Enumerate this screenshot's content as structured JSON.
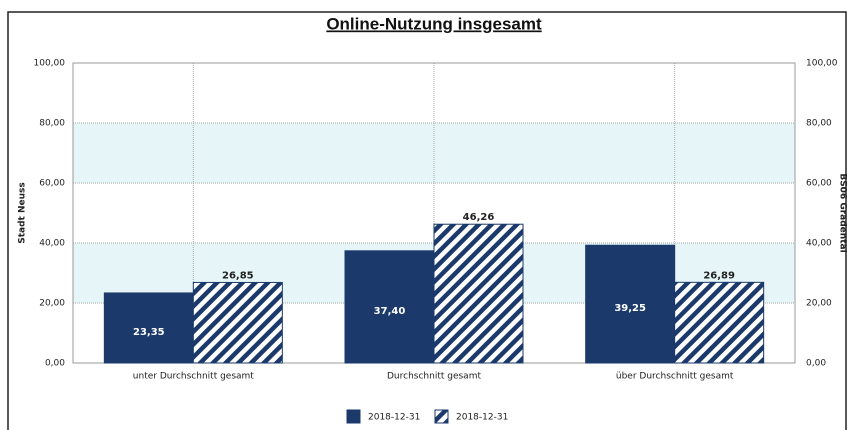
{
  "chart_data": {
    "type": "bar",
    "title": "Online-Nutzung insgesamt",
    "y_label": "Stadt Neuss",
    "y2_label": "BS06 Gradental",
    "categories": [
      "unter Durchschnitt gesamt",
      "Durchschnitt gesamt",
      "über Durchschnitt gesamt"
    ],
    "series": [
      {
        "name": "2018-12-31",
        "color": "#1b3a6b",
        "pattern": "solid",
        "values": [
          23.35,
          37.4,
          39.25
        ],
        "value_labels": [
          "23,35",
          "37,40",
          "39,25"
        ]
      },
      {
        "name": "2018-12-31",
        "color": "#1b3a6b",
        "pattern": "hatch",
        "values": [
          26.85,
          46.26,
          26.89
        ],
        "value_labels": [
          "26,85",
          "46,26",
          "26,89"
        ]
      }
    ],
    "ylim": [
      0,
      100
    ],
    "yticks": [
      {
        "value": 0,
        "label": "0,00"
      },
      {
        "value": 20,
        "label": "20,00"
      },
      {
        "value": 40,
        "label": "40,00"
      },
      {
        "value": 60,
        "label": "60,00"
      },
      {
        "value": 80,
        "label": "80,00"
      },
      {
        "value": 100,
        "label": "100,00"
      }
    ],
    "y2lim": [
      0,
      100
    ],
    "y2ticks": [
      {
        "value": 0,
        "label": "0,00"
      },
      {
        "value": 20,
        "label": "20,00"
      },
      {
        "value": 40,
        "label": "40,00"
      },
      {
        "value": 60,
        "label": "60,00"
      },
      {
        "value": 80,
        "label": "80,00"
      },
      {
        "value": 100,
        "label": "100,00"
      }
    ],
    "grid": true,
    "legend": "bottom"
  }
}
